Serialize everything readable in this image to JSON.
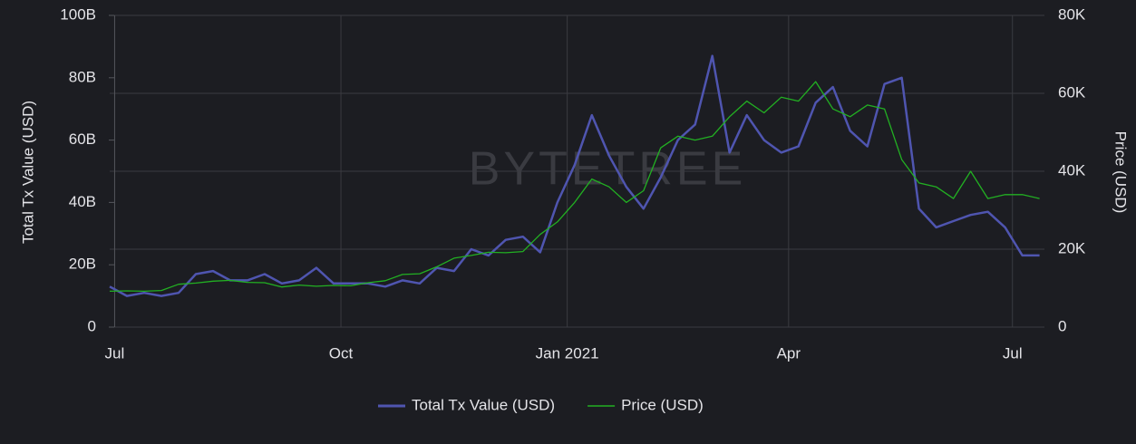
{
  "chart_data": {
    "type": "line",
    "watermark": "BYTETREE",
    "ylabel": "Total Tx Value (USD)",
    "y2label": "Price (USD)",
    "x": [
      "2020-06-29",
      "2020-07-06",
      "2020-07-13",
      "2020-07-20",
      "2020-07-27",
      "2020-08-03",
      "2020-08-10",
      "2020-08-17",
      "2020-08-24",
      "2020-08-31",
      "2020-09-07",
      "2020-09-14",
      "2020-09-21",
      "2020-09-28",
      "2020-10-05",
      "2020-10-12",
      "2020-10-19",
      "2020-10-26",
      "2020-11-02",
      "2020-11-09",
      "2020-11-16",
      "2020-11-23",
      "2020-11-30",
      "2020-12-07",
      "2020-12-14",
      "2020-12-21",
      "2020-12-28",
      "2021-01-04",
      "2021-01-11",
      "2021-01-18",
      "2021-01-25",
      "2021-02-01",
      "2021-02-08",
      "2021-02-15",
      "2021-02-22",
      "2021-03-01",
      "2021-03-08",
      "2021-03-15",
      "2021-03-22",
      "2021-03-29",
      "2021-04-05",
      "2021-04-12",
      "2021-04-19",
      "2021-04-26",
      "2021-05-03",
      "2021-05-10",
      "2021-05-17",
      "2021-05-24",
      "2021-05-31",
      "2021-06-07",
      "2021-06-14",
      "2021-06-21",
      "2021-06-28",
      "2021-07-05",
      "2021-07-12"
    ],
    "series": [
      {
        "name": "Total Tx Value (USD)",
        "color": "#4f55b0",
        "axis": "y",
        "values": [
          13000000000,
          10000000000,
          11000000000,
          10000000000,
          11000000000,
          17000000000,
          18000000000,
          15000000000,
          15000000000,
          17000000000,
          14000000000,
          15000000000,
          19000000000,
          14000000000,
          14000000000,
          14000000000,
          13000000000,
          15000000000,
          14000000000,
          19000000000,
          18000000000,
          25000000000,
          23000000000,
          28000000000,
          29000000000,
          24000000000,
          40000000000,
          52000000000,
          68000000000,
          55000000000,
          45000000000,
          38000000000,
          48000000000,
          60000000000,
          65000000000,
          87000000000,
          56000000000,
          68000000000,
          60000000000,
          56000000000,
          58000000000,
          72000000000,
          77000000000,
          63000000000,
          58000000000,
          78000000000,
          80000000000,
          38000000000,
          32000000000,
          34000000000,
          36000000000,
          37000000000,
          32000000000,
          23000000000,
          23000000000
        ]
      },
      {
        "name": "Price (USD)",
        "color": "#22b022",
        "axis": "y2",
        "values": [
          9200,
          9300,
          9200,
          9400,
          11000,
          11300,
          11800,
          12000,
          11500,
          11400,
          10300,
          10800,
          10500,
          10700,
          10600,
          11400,
          11900,
          13500,
          13700,
          15500,
          17700,
          18400,
          19200,
          19100,
          19400,
          23800,
          27000,
          32000,
          38000,
          36000,
          32000,
          35000,
          46000,
          49000,
          48000,
          49000,
          54000,
          58000,
          55000,
          59000,
          58000,
          63000,
          56000,
          54000,
          57000,
          56000,
          43000,
          37000,
          36000,
          33000,
          40000,
          33000,
          34000,
          34000,
          33000
        ]
      }
    ],
    "xlim": [
      "2020-06-29",
      "2021-07-14"
    ],
    "xticks": [
      {
        "value": "2020-07-01",
        "label": "Jul"
      },
      {
        "value": "2020-10-01",
        "label": "Oct"
      },
      {
        "value": "2021-01-01",
        "label": "Jan 2021"
      },
      {
        "value": "2021-04-01",
        "label": "Apr"
      },
      {
        "value": "2021-07-01",
        "label": "Jul"
      }
    ],
    "ylim": [
      0,
      100000000000
    ],
    "yticks": [
      0,
      {
        "value": 20000000000,
        "label": "20B"
      },
      {
        "value": 40000000000,
        "label": "40B"
      },
      {
        "value": 60000000000,
        "label": "60B"
      },
      {
        "value": 80000000000,
        "label": "80B"
      },
      {
        "value": 100000000000,
        "label": "100B"
      }
    ],
    "y2lim": [
      0,
      80000
    ],
    "y2ticks": [
      0,
      {
        "value": 20000,
        "label": "20K"
      },
      {
        "value": 40000,
        "label": "40K"
      },
      {
        "value": 60000,
        "label": "60K"
      },
      {
        "value": 80000,
        "label": "80K"
      }
    ],
    "grid": true
  }
}
